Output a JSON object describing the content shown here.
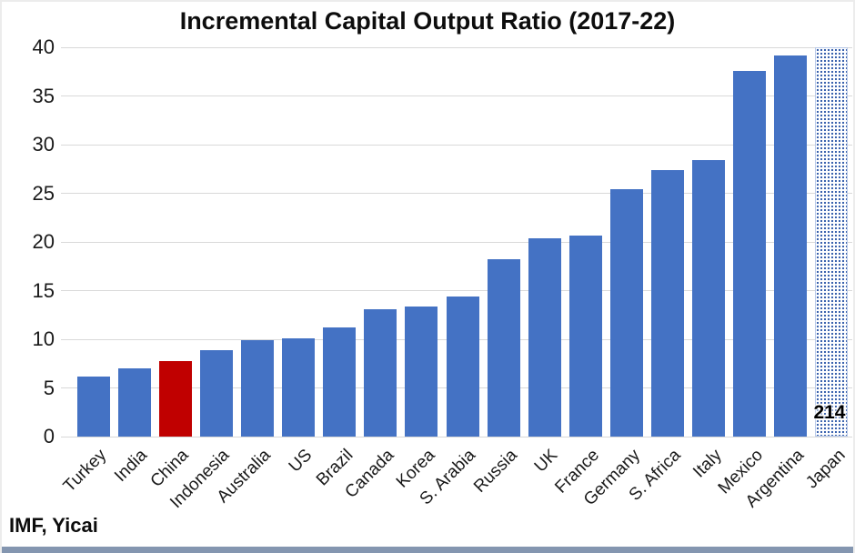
{
  "title": "Incremental Capital Output Ratio (2017-22)",
  "source": "IMF, Yicai",
  "colors": {
    "bar": "#4472C4",
    "highlight": "#C00000",
    "pattern_dot": "#2F5AA9",
    "gridline": "#D9D9D9",
    "bottom_strip": "#8496B0"
  },
  "chart_data": {
    "type": "bar",
    "title": "Incremental Capital Output Ratio (2017-22)",
    "categories": [
      "Turkey",
      "India",
      "China",
      "Indonesia",
      "Australia",
      "US",
      "Brazil",
      "Canada",
      "Korea",
      "S. Arabia",
      "Russia",
      "UK",
      "France",
      "Germany",
      "S. Africa",
      "Italy",
      "Mexico",
      "Argentina",
      "Japan"
    ],
    "values": [
      6.2,
      7.0,
      7.8,
      8.9,
      9.9,
      10.1,
      11.2,
      13.1,
      13.4,
      14.4,
      18.2,
      20.4,
      20.7,
      25.4,
      27.4,
      28.4,
      37.6,
      39.2,
      214
    ],
    "highlight_category": "China",
    "pattern_fill_category": "Japan",
    "bar_label": {
      "category": "Japan",
      "text": "214"
    },
    "xlabel": "",
    "ylabel": "",
    "ylim": [
      0,
      40
    ],
    "yticks": [
      0,
      5,
      10,
      15,
      20,
      25,
      30,
      35,
      40
    ],
    "clip_max": 40,
    "grid": true,
    "legend": "none",
    "source": "IMF, Yicai"
  }
}
